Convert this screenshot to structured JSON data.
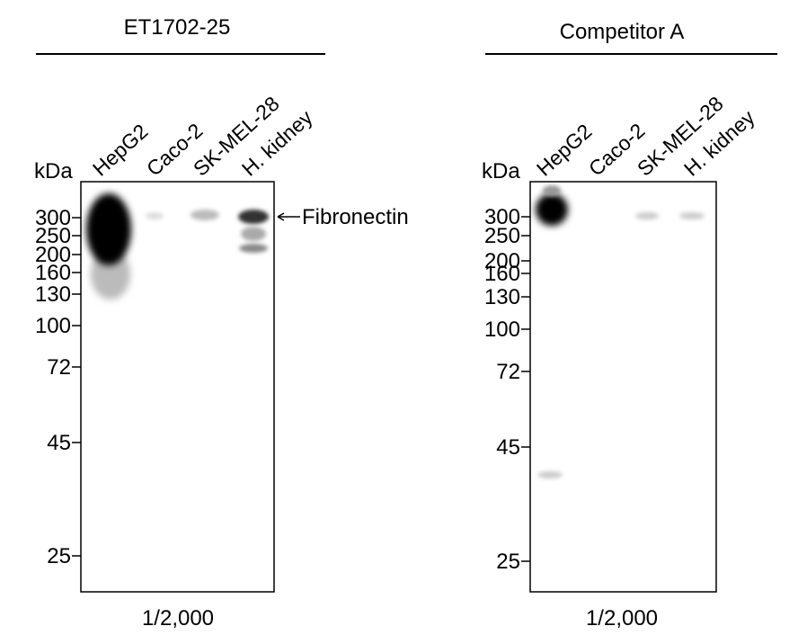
{
  "panels": [
    {
      "title": "ET1702-25",
      "unit": "kDa",
      "lanes": [
        "HepG2",
        "Caco-2",
        "SK-MEL-28",
        "H. kidney"
      ],
      "markers": [
        300,
        250,
        200,
        160,
        130,
        100,
        72,
        45,
        25
      ],
      "annotation": "Fibronectin",
      "dilution": "1/2,000"
    },
    {
      "title": "Competitor A",
      "unit": "kDa",
      "lanes": [
        "HepG2",
        "Caco-2",
        "SK-MEL-28",
        "H. kidney"
      ],
      "markers": [
        300,
        250,
        200,
        160,
        130,
        100,
        72,
        45,
        25
      ],
      "dilution": "1/2,000"
    }
  ]
}
